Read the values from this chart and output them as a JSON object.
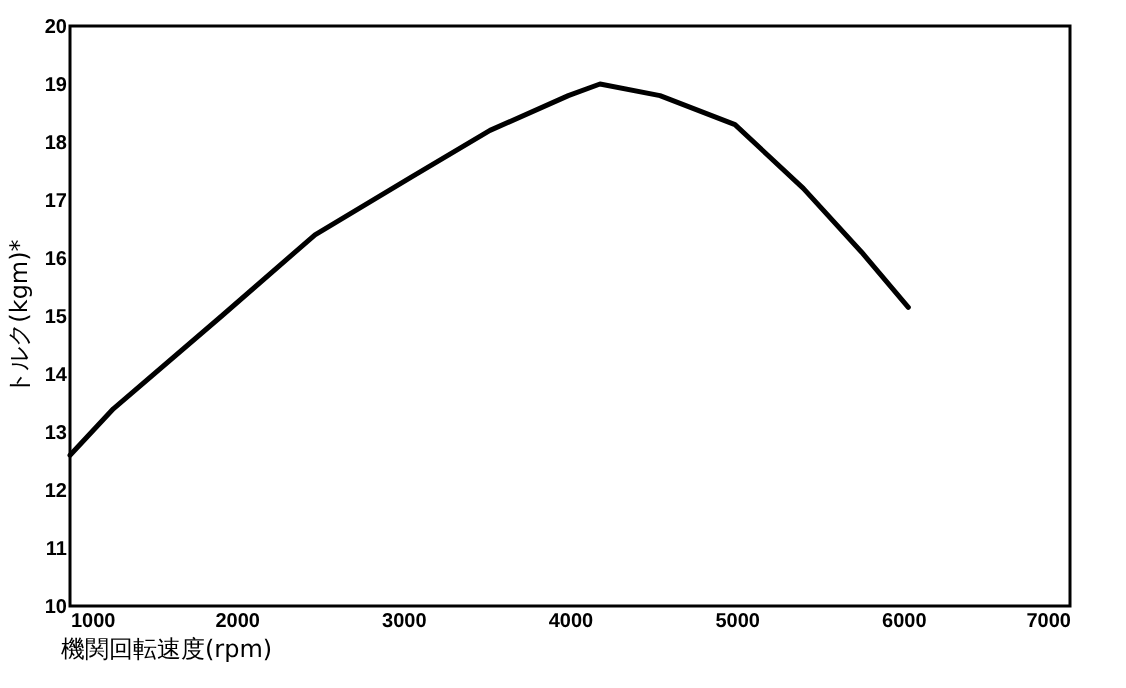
{
  "chart_data": {
    "type": "line",
    "xlabel": "機関回転速度(rpm)",
    "ylabel": "トルク(kgm)*",
    "x": [
      1000,
      1260,
      1910,
      2470,
      3050,
      3520,
      3990,
      4180,
      4540,
      4990,
      5400,
      5750,
      6030
    ],
    "series": [
      {
        "color": "#000000",
        "values": [
          12.6,
          13.4,
          15.0,
          16.4,
          17.4,
          18.2,
          18.8,
          19.0,
          18.8,
          18.3,
          17.2,
          16.1,
          15.15
        ]
      }
    ],
    "xlim": [
      1000,
      7000
    ],
    "xticks": [
      1000,
      2000,
      3000,
      4000,
      5000,
      6000,
      7000
    ],
    "ylim": [
      10,
      20
    ],
    "yticks": [
      10,
      11,
      12,
      13,
      14,
      15,
      16,
      17,
      18,
      19,
      20
    ],
    "grid": false,
    "legend": false,
    "marker": "none",
    "line_style": "solid"
  }
}
